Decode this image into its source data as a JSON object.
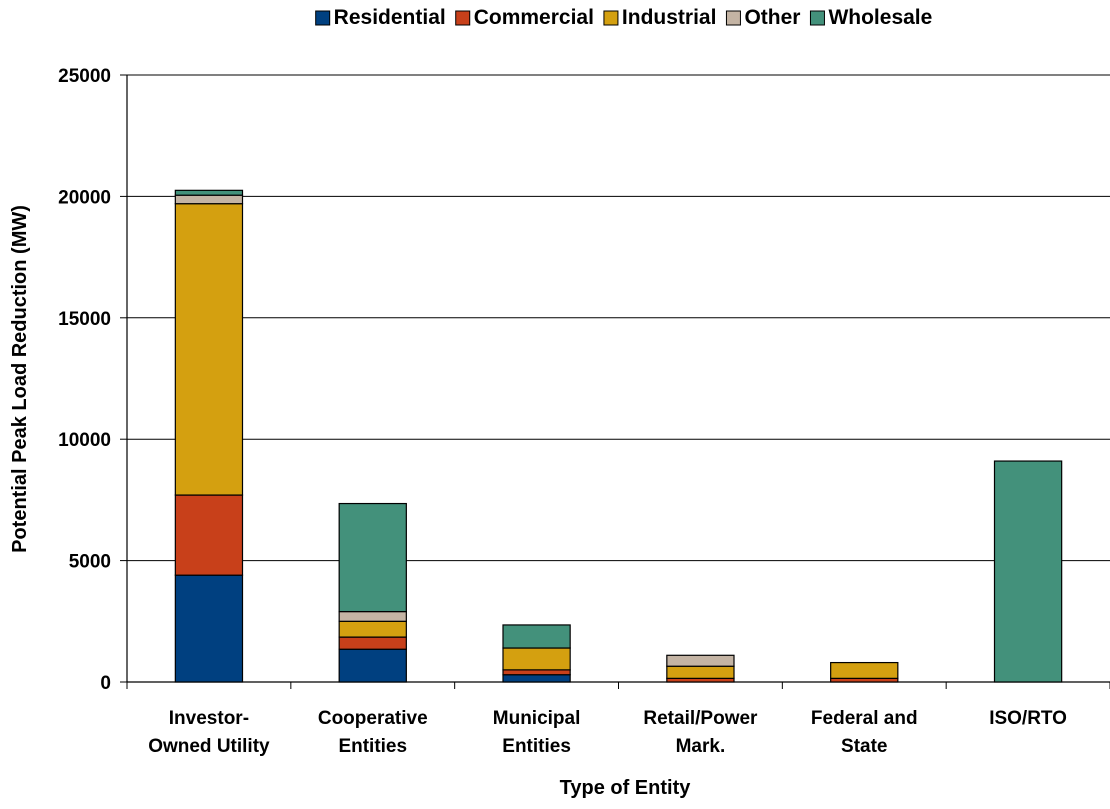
{
  "chart_data": {
    "type": "bar",
    "stacked": true,
    "title": "",
    "xlabel": "Type of Entity",
    "ylabel": "Potential Peak Load Reduction (MW)",
    "ylim": [
      0,
      25000
    ],
    "yticks": [
      0,
      5000,
      10000,
      15000,
      20000,
      25000
    ],
    "grid": true,
    "legend_position": "top",
    "categories": [
      [
        "Investor-",
        "Owned Utility"
      ],
      [
        "Cooperative",
        "Entities"
      ],
      [
        "Municipal",
        "Entities"
      ],
      [
        "Retail/Power",
        "Mark."
      ],
      [
        "Federal and",
        "State"
      ],
      [
        "ISO/RTO"
      ]
    ],
    "series": [
      {
        "name": "Residential",
        "color": "#004080",
        "values": [
          4400,
          1350,
          300,
          0,
          0,
          0
        ]
      },
      {
        "name": "Commercial",
        "color": "#C8401A",
        "values": [
          3300,
          500,
          200,
          150,
          150,
          0
        ]
      },
      {
        "name": "Industrial",
        "color": "#D4A010",
        "values": [
          12000,
          650,
          900,
          500,
          650,
          0
        ]
      },
      {
        "name": "Other",
        "color": "#C4B4A4",
        "values": [
          350,
          400,
          0,
          450,
          0,
          0
        ]
      },
      {
        "name": "Wholesale",
        "color": "#43917B",
        "values": [
          200,
          4450,
          950,
          0,
          0,
          9100
        ]
      }
    ]
  }
}
